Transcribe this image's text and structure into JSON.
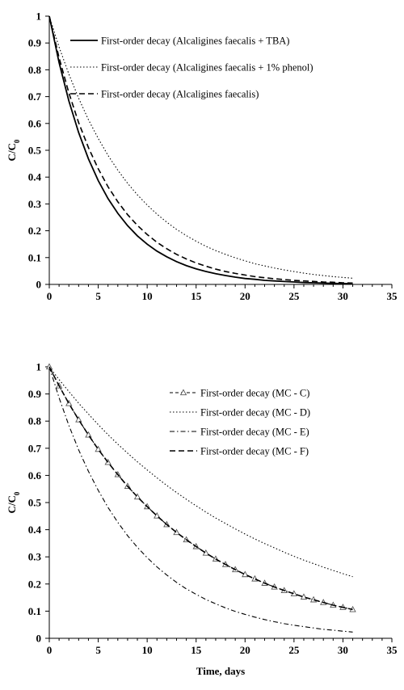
{
  "chart_data": [
    {
      "type": "line",
      "title": "",
      "xlabel": "",
      "ylabel": "C/C",
      "ylabel_subscript": "0",
      "xlim": [
        0,
        35
      ],
      "ylim": [
        0,
        1
      ],
      "xticks": [
        "0",
        "5",
        "10",
        "15",
        "20",
        "25",
        "30",
        "35"
      ],
      "yticks": [
        "0",
        "0.1",
        "0.2",
        "0.3",
        "0.4",
        "0.5",
        "0.6",
        "0.7",
        "0.8",
        "0.9",
        "1"
      ],
      "grid": false,
      "legend_placement": "top-right",
      "x": [
        0,
        1,
        2,
        3,
        4,
        5,
        6,
        7,
        8,
        9,
        10,
        11,
        12,
        13,
        14,
        15,
        16,
        17,
        18,
        19,
        20,
        21,
        22,
        23,
        24,
        25,
        26,
        27,
        28,
        29,
        30,
        31
      ],
      "series": [
        {
          "name": "First-order decay (Alcaligines faecalis + TBA)",
          "style": "solid",
          "values": [
            1.0,
            0.827,
            0.684,
            0.566,
            0.468,
            0.387,
            0.32,
            0.265,
            0.219,
            0.181,
            0.15,
            0.124,
            0.103,
            0.085,
            0.07,
            0.058,
            0.048,
            0.04,
            0.033,
            0.027,
            0.022,
            0.019,
            0.015,
            0.013,
            0.011,
            0.009,
            0.007,
            0.006,
            0.005,
            0.004,
            0.003,
            0.003
          ]
        },
        {
          "name": "First-order decay (Alcaligines faecalis + 1% phenol)",
          "style": "dotted",
          "values": [
            1.0,
            0.885,
            0.784,
            0.694,
            0.614,
            0.544,
            0.481,
            0.426,
            0.377,
            0.334,
            0.296,
            0.262,
            0.232,
            0.205,
            0.182,
            0.161,
            0.142,
            0.126,
            0.112,
            0.099,
            0.088,
            0.077,
            0.069,
            0.061,
            0.054,
            0.048,
            0.042,
            0.037,
            0.033,
            0.029,
            0.026,
            0.023
          ]
        },
        {
          "name": "First-order decay (Alcaligines faecalis)",
          "style": "dashed",
          "values": [
            1.0,
            0.845,
            0.714,
            0.603,
            0.51,
            0.431,
            0.364,
            0.308,
            0.26,
            0.22,
            0.186,
            0.157,
            0.133,
            0.112,
            0.095,
            0.08,
            0.068,
            0.057,
            0.048,
            0.041,
            0.035,
            0.029,
            0.025,
            0.021,
            0.018,
            0.015,
            0.013,
            0.011,
            0.009,
            0.008,
            0.006,
            0.005
          ]
        }
      ]
    },
    {
      "type": "line",
      "title": "",
      "xlabel": "Time, days",
      "ylabel": "C/C",
      "ylabel_subscript": "0",
      "xlim": [
        0,
        35
      ],
      "ylim": [
        0,
        1
      ],
      "xticks": [
        "0",
        "5",
        "10",
        "15",
        "20",
        "25",
        "30",
        "35"
      ],
      "yticks": [
        "0",
        "0.1",
        "0.2",
        "0.3",
        "0.4",
        "0.5",
        "0.6",
        "0.7",
        "0.8",
        "0.9",
        "1"
      ],
      "grid": false,
      "legend_placement": "top-right",
      "x": [
        0,
        1,
        2,
        3,
        4,
        5,
        6,
        7,
        8,
        9,
        10,
        11,
        12,
        13,
        14,
        15,
        16,
        17,
        18,
        19,
        20,
        21,
        22,
        23,
        24,
        25,
        26,
        27,
        28,
        29,
        30,
        31
      ],
      "series": [
        {
          "name": "First-order decay (MC - C)",
          "style": "dashed-triangle",
          "values": [
            1.0,
            0.93,
            0.865,
            0.805,
            0.749,
            0.696,
            0.648,
            0.603,
            0.56,
            0.521,
            0.485,
            0.451,
            0.419,
            0.39,
            0.363,
            0.338,
            0.314,
            0.292,
            0.272,
            0.253,
            0.235,
            0.219,
            0.203,
            0.189,
            0.176,
            0.164,
            0.152,
            0.142,
            0.132,
            0.122,
            0.114,
            0.106
          ]
        },
        {
          "name": "First-order decay (MC - D)",
          "style": "dotted",
          "values": [
            1.0,
            0.953,
            0.909,
            0.866,
            0.826,
            0.787,
            0.75,
            0.715,
            0.682,
            0.65,
            0.62,
            0.591,
            0.563,
            0.537,
            0.512,
            0.488,
            0.465,
            0.443,
            0.423,
            0.403,
            0.384,
            0.366,
            0.349,
            0.333,
            0.317,
            0.302,
            0.288,
            0.275,
            0.262,
            0.25,
            0.238,
            0.227
          ]
        },
        {
          "name": "First-order decay (MC - E)",
          "style": "dash-dot",
          "values": [
            1.0,
            0.886,
            0.784,
            0.694,
            0.615,
            0.545,
            0.482,
            0.427,
            0.378,
            0.335,
            0.297,
            0.263,
            0.233,
            0.206,
            0.182,
            0.162,
            0.143,
            0.127,
            0.112,
            0.099,
            0.088,
            0.078,
            0.069,
            0.061,
            0.054,
            0.048,
            0.043,
            0.038,
            0.033,
            0.03,
            0.026,
            0.023
          ]
        },
        {
          "name": "First-order decay (MC - F)",
          "style": "dashed",
          "values": [
            1.0,
            0.93,
            0.865,
            0.805,
            0.749,
            0.696,
            0.648,
            0.603,
            0.56,
            0.521,
            0.485,
            0.451,
            0.419,
            0.39,
            0.363,
            0.338,
            0.314,
            0.292,
            0.272,
            0.253,
            0.235,
            0.219,
            0.203,
            0.189,
            0.176,
            0.164,
            0.152,
            0.142,
            0.132,
            0.122,
            0.114,
            0.106
          ]
        }
      ]
    }
  ]
}
